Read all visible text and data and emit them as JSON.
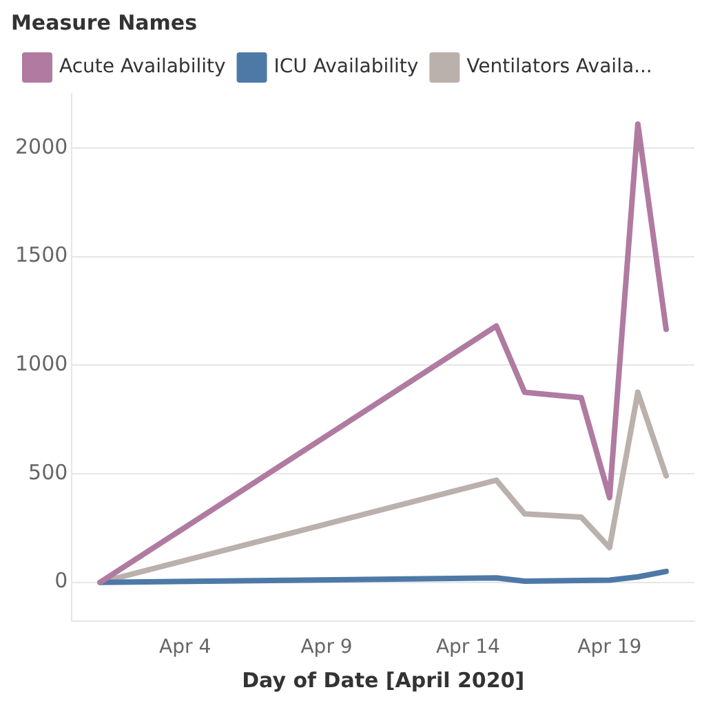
{
  "chart_data": {
    "type": "line",
    "xlabel": "Day of Date [April 2020]",
    "legend_title": "Measure Names",
    "legend": "top left",
    "grid": "y",
    "marker": "none",
    "line_style": "solid",
    "xlim": [
      "2020-03-31",
      "2020-04-22"
    ],
    "xticks": [
      {
        "value": "2020-04-04",
        "label": "Apr 4"
      },
      {
        "value": "2020-04-09",
        "label": "Apr 9"
      },
      {
        "value": "2020-04-14",
        "label": "Apr 14"
      },
      {
        "value": "2020-04-19",
        "label": "Apr 19"
      }
    ],
    "ylim": [
      -180,
      2250
    ],
    "yticks": [
      0,
      500,
      1000,
      1500,
      2000
    ],
    "x": [
      "2020-04-01",
      "2020-04-15",
      "2020-04-16",
      "2020-04-18",
      "2020-04-19",
      "2020-04-20",
      "2020-04-21"
    ],
    "series": [
      {
        "name": "Acute Availability",
        "color": "#b07aa1",
        "values": [
          0,
          1180,
          875,
          850,
          390,
          2110,
          1165
        ]
      },
      {
        "name": "ICU Availability",
        "color": "#4e79a7",
        "values": [
          0,
          20,
          5,
          8,
          10,
          25,
          50
        ]
      },
      {
        "name": "Ventilators Availa...",
        "color": "#bab0ac",
        "values": [
          0,
          470,
          315,
          300,
          160,
          875,
          490
        ]
      }
    ]
  }
}
